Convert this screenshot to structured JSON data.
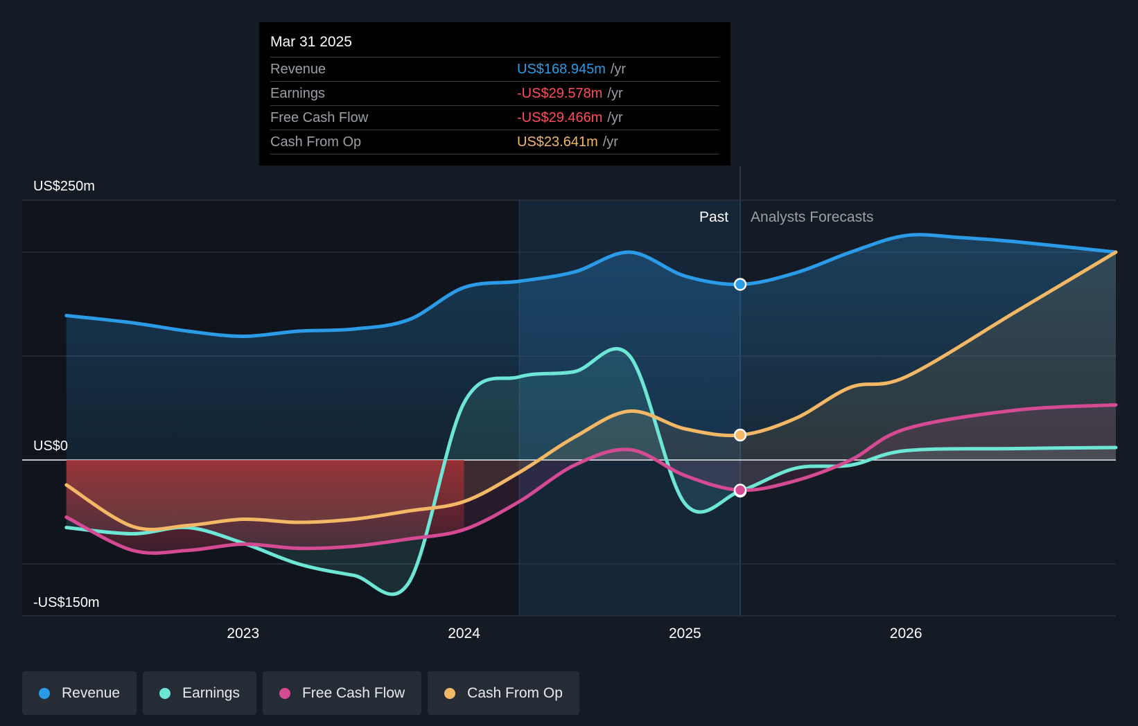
{
  "tooltip": {
    "date": "Mar 31 2025",
    "rows": [
      {
        "label": "Revenue",
        "value": "US$168.945m",
        "unit": "/yr",
        "color": "#2b9be8"
      },
      {
        "label": "Earnings",
        "value": "-US$29.578m",
        "unit": "/yr",
        "color": "#ff4d5a"
      },
      {
        "label": "Free Cash Flow",
        "value": "-US$29.466m",
        "unit": "/yr",
        "color": "#ff4d5a"
      },
      {
        "label": "Cash From Op",
        "value": "US$23.641m",
        "unit": "/yr",
        "color": "#f3b866"
      }
    ]
  },
  "legend": [
    {
      "label": "Revenue",
      "color": "#2b9be8"
    },
    {
      "label": "Earnings",
      "color": "#6ee6d6"
    },
    {
      "label": "Free Cash Flow",
      "color": "#d44a93"
    },
    {
      "label": "Cash From Op",
      "color": "#f3b866"
    }
  ],
  "chart_data": {
    "type": "line",
    "title": "",
    "y_unit": "US$m",
    "ylim": [
      -150,
      250
    ],
    "y_tick_labels": [
      {
        "value": 250,
        "label": "US$250m"
      },
      {
        "value": 0,
        "label": "US$0"
      },
      {
        "value": -150,
        "label": "-US$150m"
      }
    ],
    "y_gridlines": [
      250,
      200,
      100,
      0,
      -100,
      -150
    ],
    "xlim": [
      2022.0,
      2026.95
    ],
    "x_ticks": [
      {
        "value": 2023,
        "label": "2023"
      },
      {
        "value": 2024,
        "label": "2024"
      },
      {
        "value": 2025,
        "label": "2025"
      },
      {
        "value": 2026,
        "label": "2026"
      }
    ],
    "past_label": "Past",
    "forecast_label": "Analysts Forecasts",
    "highlight_range": [
      2024.25,
      2025.25
    ],
    "current_date": 2025.25,
    "series": [
      {
        "name": "Revenue",
        "color": "#2b9be8",
        "points": [
          [
            2022.2,
            139
          ],
          [
            2022.5,
            132
          ],
          [
            2022.75,
            124
          ],
          [
            2023,
            119
          ],
          [
            2023.25,
            124
          ],
          [
            2023.5,
            126
          ],
          [
            2023.75,
            135
          ],
          [
            2024,
            166
          ],
          [
            2024.25,
            172
          ],
          [
            2024.5,
            181
          ],
          [
            2024.75,
            200
          ],
          [
            2025,
            177
          ],
          [
            2025.25,
            169
          ],
          [
            2025.5,
            180
          ],
          [
            2025.75,
            200
          ],
          [
            2026,
            216
          ],
          [
            2026.25,
            214
          ],
          [
            2026.5,
            210
          ],
          [
            2026.95,
            200
          ]
        ]
      },
      {
        "name": "Earnings",
        "color": "#6ee6d6",
        "points": [
          [
            2022.2,
            -65
          ],
          [
            2022.5,
            -71
          ],
          [
            2022.75,
            -65
          ],
          [
            2023,
            -80
          ],
          [
            2023.25,
            -100
          ],
          [
            2023.5,
            -111
          ],
          [
            2023.75,
            -118
          ],
          [
            2024,
            55
          ],
          [
            2024.25,
            80
          ],
          [
            2024.5,
            85
          ],
          [
            2024.75,
            100
          ],
          [
            2025,
            -42
          ],
          [
            2025.25,
            -30
          ],
          [
            2025.5,
            -8
          ],
          [
            2025.75,
            -5
          ],
          [
            2026,
            9
          ],
          [
            2026.5,
            11
          ],
          [
            2026.95,
            12
          ]
        ]
      },
      {
        "name": "Free Cash Flow",
        "color": "#d44a93",
        "points": [
          [
            2022.2,
            -55
          ],
          [
            2022.5,
            -87
          ],
          [
            2022.75,
            -87
          ],
          [
            2023,
            -81
          ],
          [
            2023.25,
            -85
          ],
          [
            2023.5,
            -83
          ],
          [
            2023.75,
            -76
          ],
          [
            2024,
            -67
          ],
          [
            2024.25,
            -40
          ],
          [
            2024.5,
            -5
          ],
          [
            2024.75,
            10
          ],
          [
            2025,
            -15
          ],
          [
            2025.25,
            -29
          ],
          [
            2025.5,
            -20
          ],
          [
            2025.75,
            0
          ],
          [
            2026,
            30
          ],
          [
            2026.5,
            48
          ],
          [
            2026.95,
            53
          ]
        ]
      },
      {
        "name": "Cash From Op",
        "color": "#f3b866",
        "points": [
          [
            2022.2,
            -24
          ],
          [
            2022.5,
            -64
          ],
          [
            2022.75,
            -63
          ],
          [
            2023,
            -57
          ],
          [
            2023.25,
            -60
          ],
          [
            2023.5,
            -57
          ],
          [
            2023.75,
            -49
          ],
          [
            2024,
            -40
          ],
          [
            2024.25,
            -12
          ],
          [
            2024.5,
            22
          ],
          [
            2024.75,
            47
          ],
          [
            2025,
            30
          ],
          [
            2025.25,
            24
          ],
          [
            2025.5,
            40
          ],
          [
            2025.75,
            70
          ],
          [
            2026,
            80
          ],
          [
            2026.5,
            143
          ],
          [
            2026.95,
            200
          ]
        ]
      }
    ]
  }
}
